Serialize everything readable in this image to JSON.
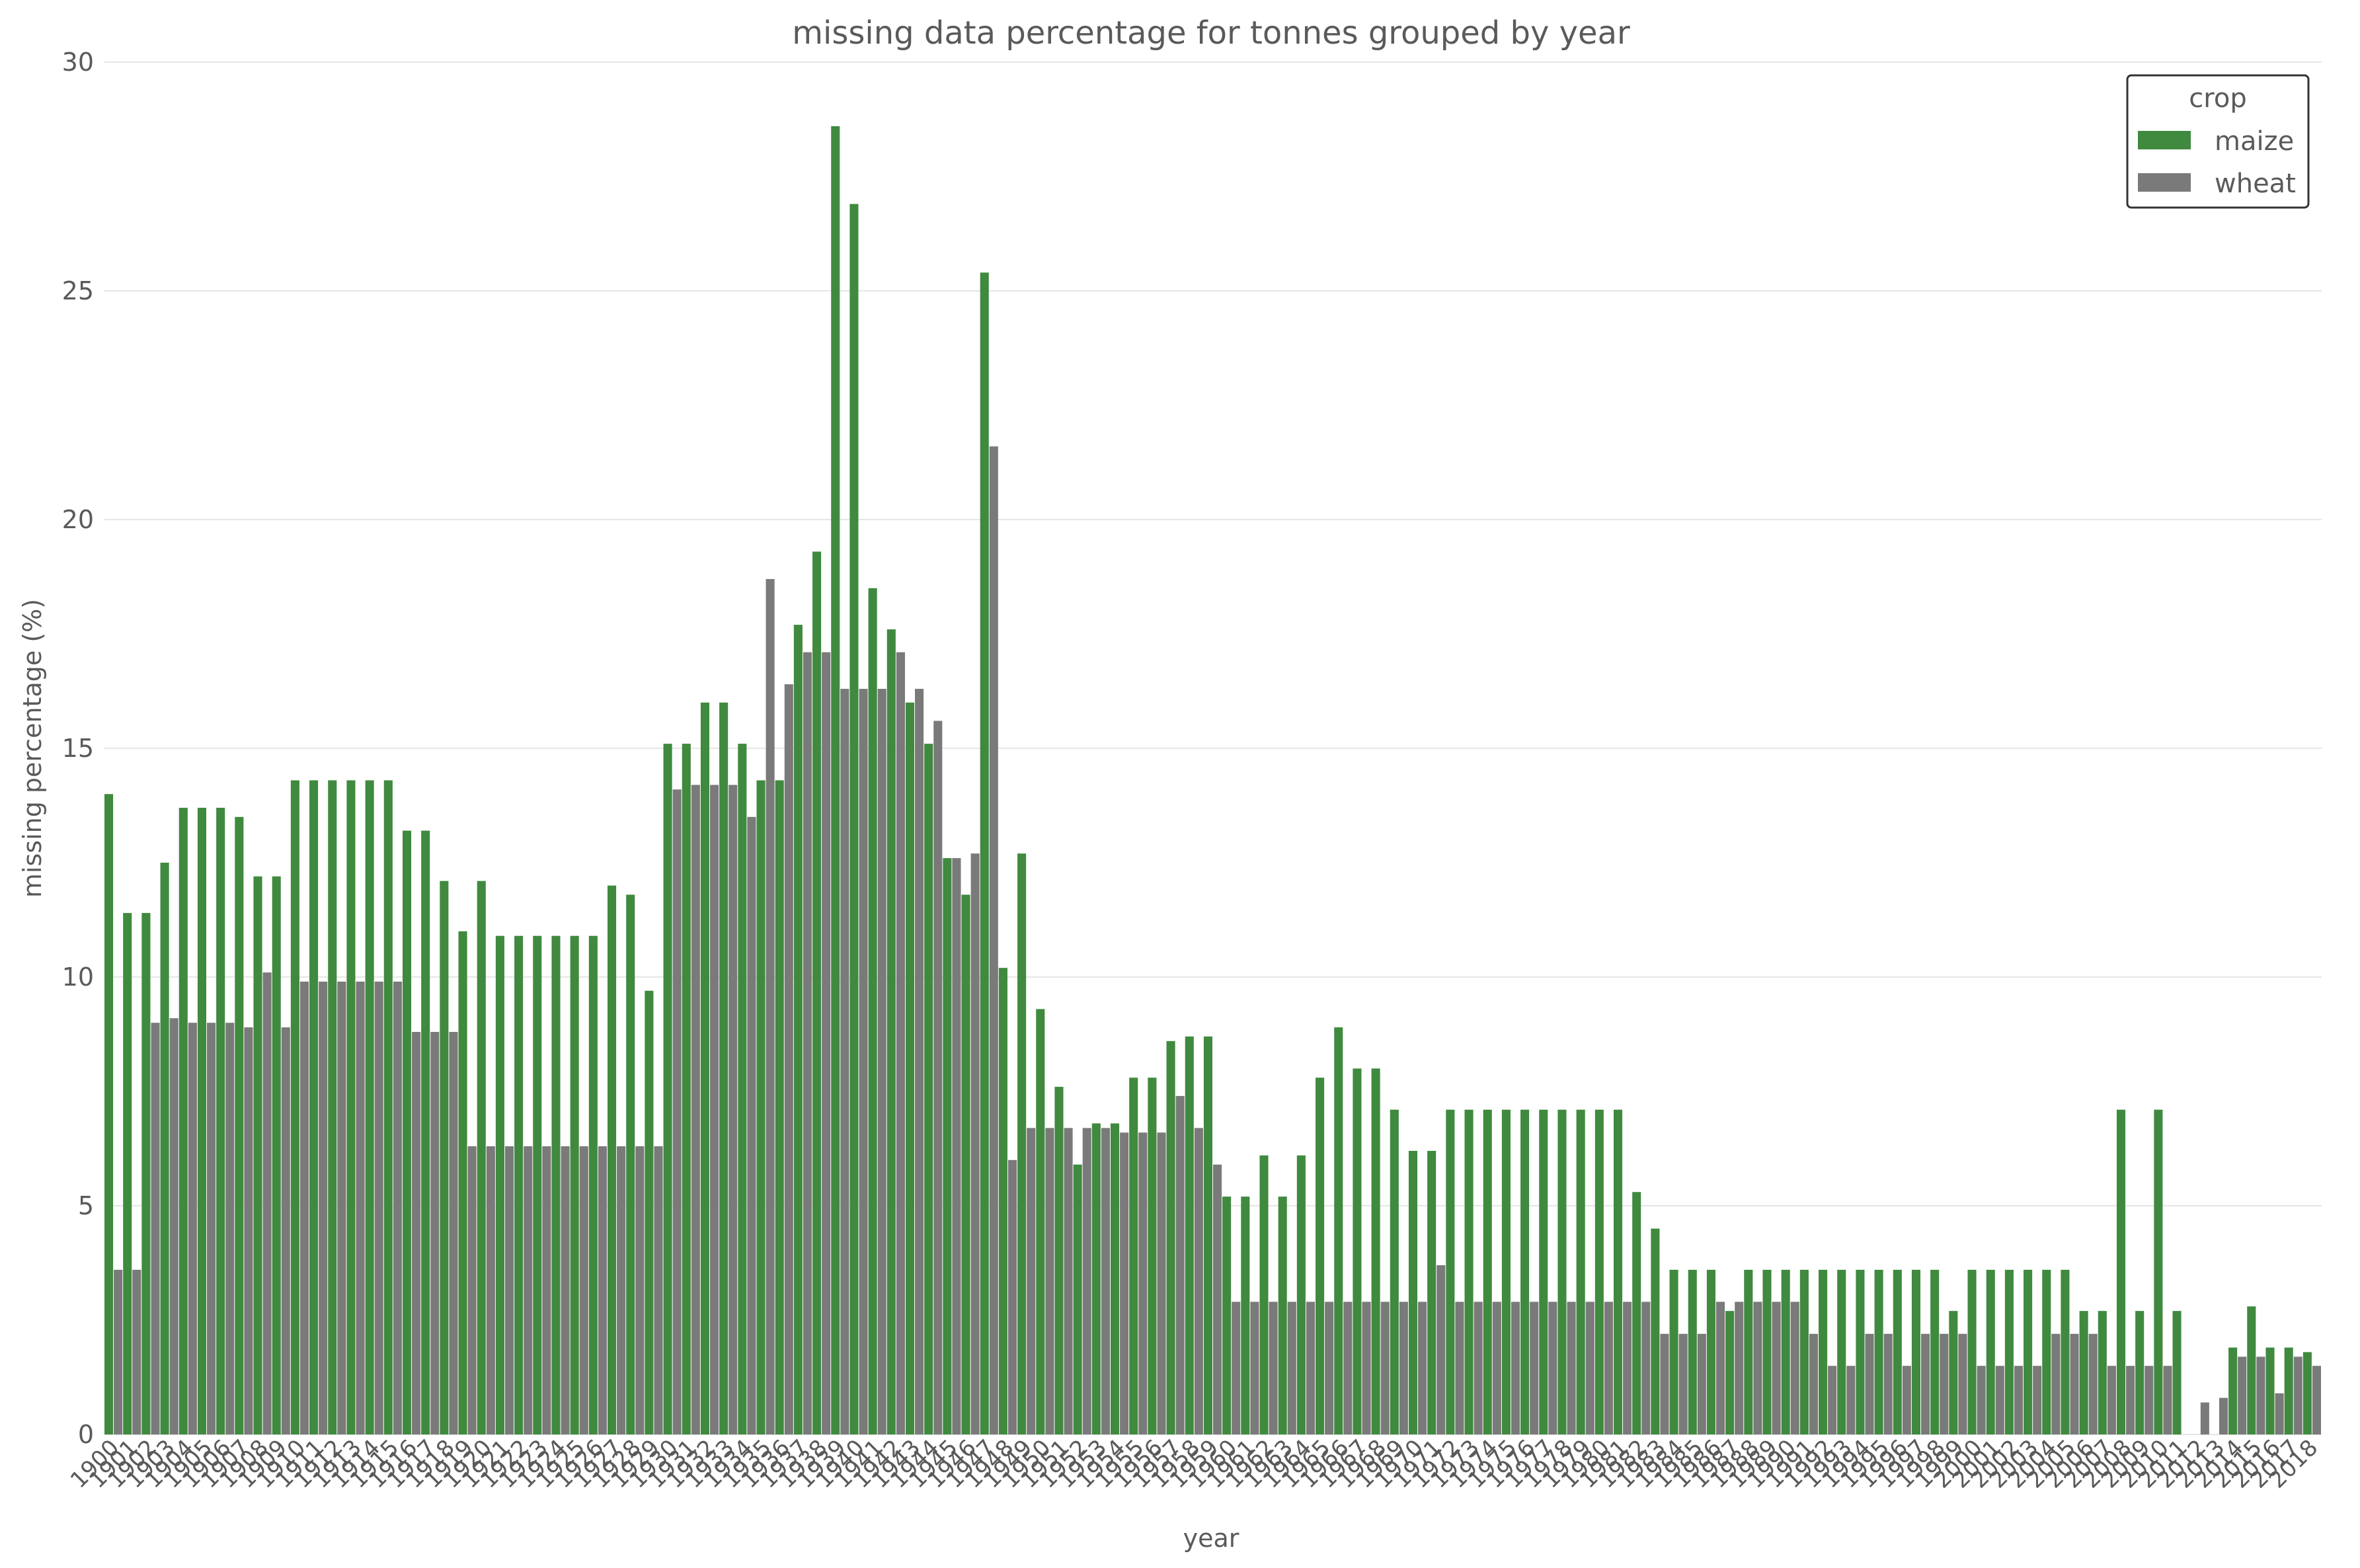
{
  "chart_data": {
    "type": "bar",
    "title": "missing data percentage for tonnes grouped by year",
    "xlabel": "year",
    "ylabel": "missing percentage (%)",
    "ylim": [
      0,
      30
    ],
    "yticks": [
      0,
      5,
      10,
      15,
      20,
      25,
      30
    ],
    "grid": "horizontal",
    "legend": {
      "title": "crop",
      "placement": "top-right"
    },
    "categories": [
      1900,
      1901,
      1902,
      1903,
      1904,
      1905,
      1906,
      1907,
      1908,
      1909,
      1910,
      1911,
      1912,
      1913,
      1914,
      1915,
      1916,
      1917,
      1918,
      1919,
      1920,
      1921,
      1922,
      1923,
      1924,
      1925,
      1926,
      1927,
      1928,
      1929,
      1930,
      1931,
      1932,
      1933,
      1934,
      1935,
      1936,
      1937,
      1938,
      1939,
      1940,
      1941,
      1942,
      1943,
      1944,
      1945,
      1946,
      1947,
      1948,
      1949,
      1950,
      1951,
      1952,
      1953,
      1954,
      1955,
      1956,
      1957,
      1958,
      1959,
      1960,
      1961,
      1962,
      1963,
      1964,
      1965,
      1966,
      1967,
      1968,
      1969,
      1970,
      1971,
      1972,
      1973,
      1974,
      1975,
      1976,
      1977,
      1978,
      1979,
      1980,
      1981,
      1982,
      1983,
      1984,
      1985,
      1986,
      1987,
      1988,
      1989,
      1990,
      1991,
      1992,
      1993,
      1994,
      1995,
      1996,
      1997,
      1998,
      1999,
      2000,
      2001,
      2002,
      2003,
      2004,
      2005,
      2006,
      2007,
      2008,
      2009,
      2010,
      2011,
      2012,
      2013,
      2014,
      2015,
      2016,
      2017,
      2018
    ],
    "series": [
      {
        "name": "maize",
        "color": "#3f8a3f",
        "values": [
          14.0,
          11.4,
          11.4,
          12.5,
          13.7,
          13.7,
          13.7,
          13.5,
          12.2,
          12.2,
          14.3,
          14.3,
          14.3,
          14.3,
          14.3,
          14.3,
          13.2,
          13.2,
          12.1,
          11.0,
          12.1,
          10.9,
          10.9,
          10.9,
          10.9,
          10.9,
          10.9,
          12.0,
          11.8,
          9.7,
          15.1,
          15.1,
          16.0,
          16.0,
          15.1,
          14.3,
          14.3,
          17.7,
          19.3,
          28.6,
          26.9,
          18.5,
          17.6,
          16.0,
          15.1,
          12.6,
          11.8,
          25.4,
          10.2,
          12.7,
          9.3,
          7.6,
          5.9,
          6.8,
          6.8,
          7.8,
          7.8,
          8.6,
          8.7,
          8.7,
          5.2,
          5.2,
          6.1,
          5.2,
          6.1,
          7.8,
          8.9,
          8.0,
          8.0,
          7.1,
          6.2,
          6.2,
          7.1,
          7.1,
          7.1,
          7.1,
          7.1,
          7.1,
          7.1,
          7.1,
          7.1,
          7.1,
          5.3,
          4.5,
          3.6,
          3.6,
          3.6,
          2.7,
          3.6,
          3.6,
          3.6,
          3.6,
          3.6,
          3.6,
          3.6,
          3.6,
          3.6,
          3.6,
          3.6,
          2.7,
          3.6,
          3.6,
          3.6,
          3.6,
          3.6,
          3.6,
          2.7,
          2.7,
          7.1,
          2.7,
          7.1,
          2.7,
          0,
          0,
          1.9,
          2.8,
          1.9,
          1.9,
          1.8
        ]
      },
      {
        "name": "wheat",
        "color": "#7a7a7a",
        "values": [
          3.6,
          3.6,
          9.0,
          9.1,
          9.0,
          9.0,
          9.0,
          8.9,
          10.1,
          8.9,
          9.9,
          9.9,
          9.9,
          9.9,
          9.9,
          9.9,
          8.8,
          8.8,
          8.8,
          6.3,
          6.3,
          6.3,
          6.3,
          6.3,
          6.3,
          6.3,
          6.3,
          6.3,
          6.3,
          6.3,
          14.1,
          14.2,
          14.2,
          14.2,
          13.5,
          18.7,
          16.4,
          17.1,
          17.1,
          16.3,
          16.3,
          16.3,
          17.1,
          16.3,
          15.6,
          12.6,
          12.7,
          21.6,
          6.0,
          6.7,
          6.7,
          6.7,
          6.7,
          6.7,
          6.6,
          6.6,
          6.6,
          7.4,
          6.7,
          5.9,
          2.9,
          2.9,
          2.9,
          2.9,
          2.9,
          2.9,
          2.9,
          2.9,
          2.9,
          2.9,
          2.9,
          3.7,
          2.9,
          2.9,
          2.9,
          2.9,
          2.9,
          2.9,
          2.9,
          2.9,
          2.9,
          2.9,
          2.9,
          2.2,
          2.2,
          2.2,
          2.9,
          2.9,
          2.9,
          2.9,
          2.9,
          2.2,
          1.5,
          1.5,
          2.2,
          2.2,
          1.5,
          2.2,
          2.2,
          2.2,
          1.5,
          1.5,
          1.5,
          1.5,
          2.2,
          2.2,
          2.2,
          1.5,
          1.5,
          1.5,
          1.5,
          0,
          0.7,
          0.8,
          1.7,
          1.7,
          0.9,
          1.7,
          1.5
        ]
      }
    ]
  }
}
